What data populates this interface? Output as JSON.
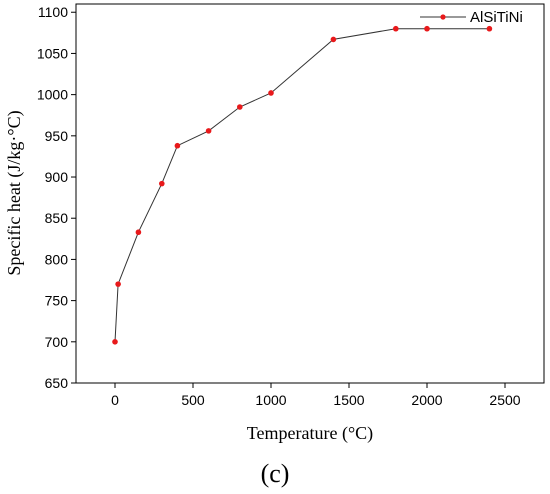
{
  "chart_data": {
    "type": "line",
    "xlabel": "Temperature (°C)",
    "ylabel": "Specific heat (J/kg·°C)",
    "xlim": [
      -250,
      2750
    ],
    "ylim": [
      650,
      1110
    ],
    "xticks": [
      0,
      500,
      1000,
      1500,
      2000,
      2500
    ],
    "yticks": [
      650,
      700,
      750,
      800,
      850,
      900,
      950,
      1000,
      1050,
      1100
    ],
    "grid": false,
    "legend_position": "top-right",
    "series": [
      {
        "name": "AlSiTiNi",
        "color": "#e8191b",
        "x": [
          0,
          20,
          150,
          300,
          400,
          600,
          800,
          1000,
          1400,
          1800,
          2000,
          2400
        ],
        "y": [
          700,
          770,
          833,
          892,
          938,
          956,
          985,
          1002,
          1067,
          1080,
          1080,
          1080
        ]
      }
    ]
  },
  "panel_label": "(c)"
}
